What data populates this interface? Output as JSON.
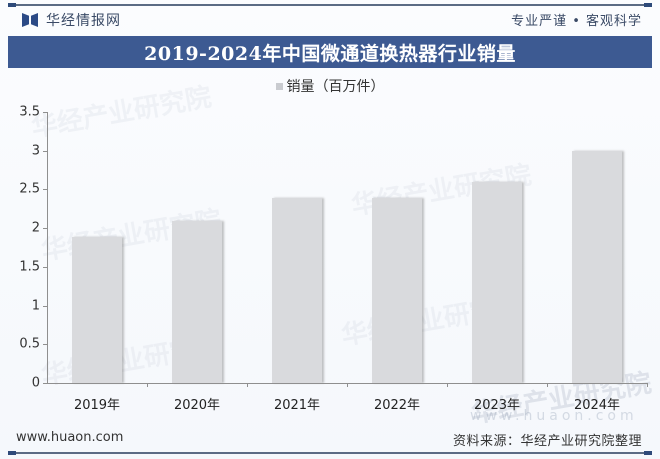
{
  "header": {
    "brand_name": "华经情报网",
    "slogan": "专业严谨 • 客观科学",
    "title": "2019-2024年中国微通道换热器行业销量"
  },
  "legend": {
    "label": "销量（百万件）",
    "color": "#d9dadd"
  },
  "footer": {
    "website": "www.huaon.com",
    "source": "资料来源：华经产业研究院整理"
  },
  "watermark": {
    "text": "华经产业研究院",
    "url": "www.huaon.com"
  },
  "colors": {
    "title_bar": "#3d5a92",
    "bar": "#d9dadd",
    "axis": "#8f8f8f"
  },
  "chart_data": {
    "type": "bar",
    "title": "2019-2024年中国微通道换热器行业销量",
    "categories": [
      "2019年",
      "2020年",
      "2021年",
      "2022年",
      "2023年",
      "2024年"
    ],
    "series": [
      {
        "name": "销量（百万件）",
        "values": [
          1.89,
          2.09,
          2.39,
          2.39,
          2.6,
          3.0
        ]
      }
    ],
    "xlabel": "",
    "ylabel": "",
    "ylim": [
      0,
      3.5
    ],
    "yticks": [
      "0",
      "0.5",
      "1",
      "1.5",
      "2",
      "2.5",
      "3",
      "3.5"
    ],
    "grid": false,
    "legend_position": "top"
  }
}
